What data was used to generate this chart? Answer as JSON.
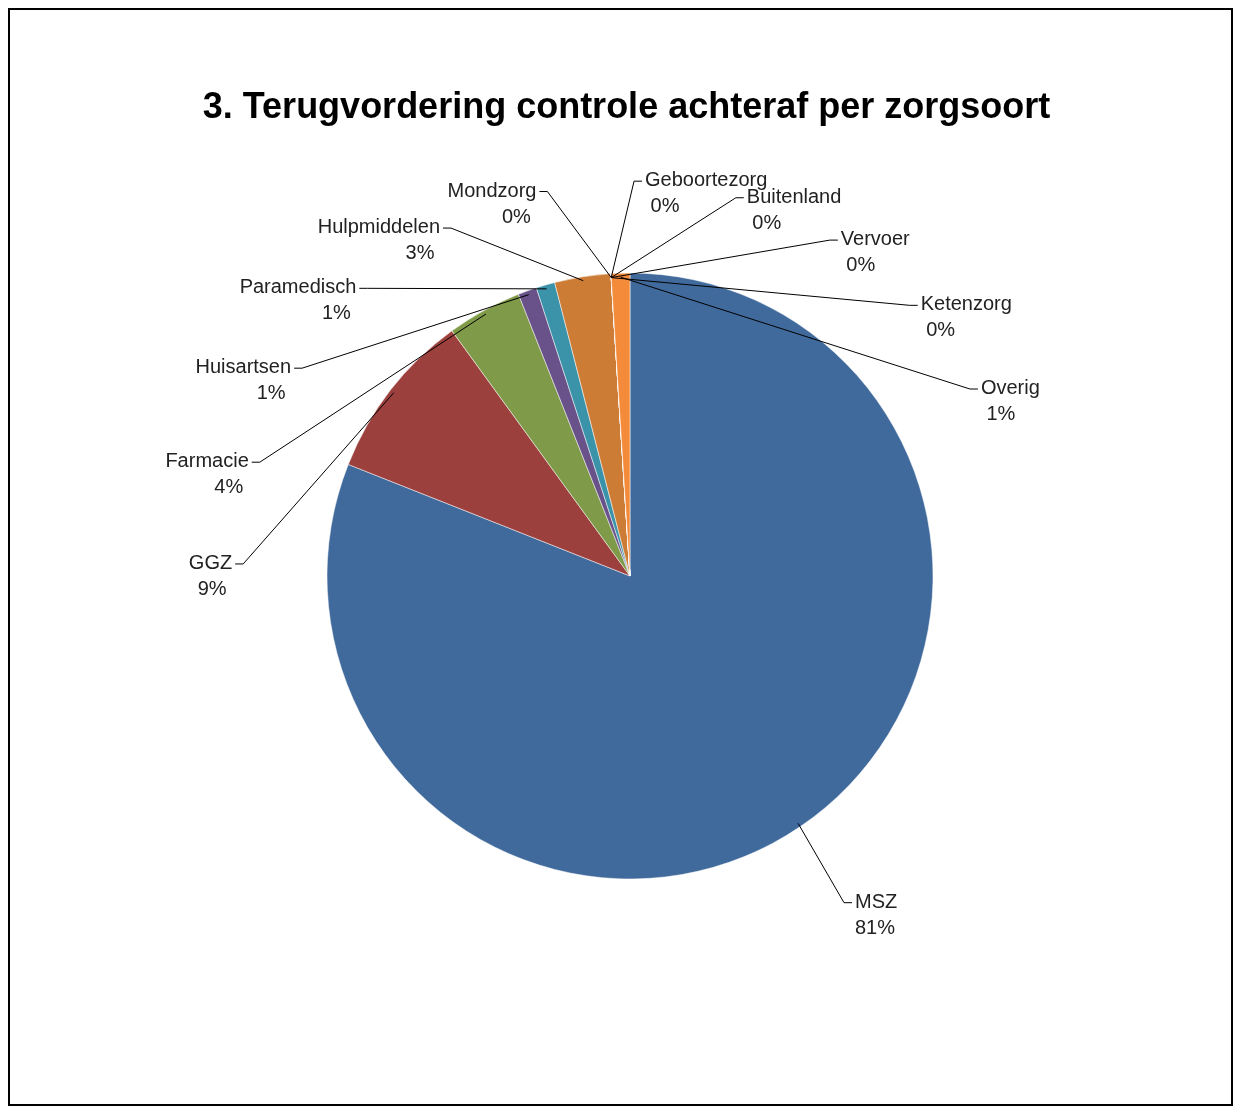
{
  "chart_data": {
    "type": "pie",
    "title": "3. Terugvordering controle achteraf per zorgsoort",
    "categories": [
      "MSZ",
      "GGZ",
      "Farmacie",
      "Huisartsen",
      "Paramedisch",
      "Hulpmiddelen",
      "Mondzorg",
      "Geboortezorg",
      "Buitenland",
      "Vervoer",
      "Ketenzorg",
      "Overig"
    ],
    "values": [
      81,
      9,
      4,
      1,
      1,
      3,
      0,
      0,
      0,
      0,
      0,
      1
    ],
    "colors": [
      "#416a9c",
      "#9c403d",
      "#7f9a48",
      "#69518a",
      "#3b93a9",
      "#cd7c36",
      "#4a78b0",
      "#b0504d",
      "#8fae55",
      "#7a5a9e",
      "#46a3bd",
      "#f38b3a"
    ],
    "value_labels": [
      "81%",
      "9%",
      "4%",
      "1%",
      "1%",
      "3%",
      "0%",
      "0%",
      "0%",
      "0%",
      "0%",
      "1%"
    ]
  }
}
